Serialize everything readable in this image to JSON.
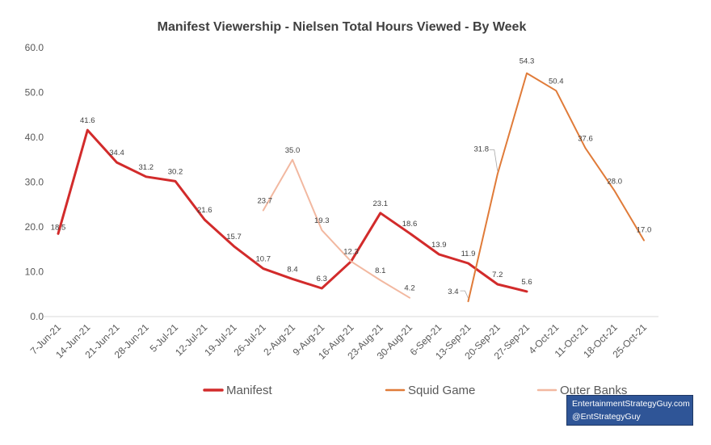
{
  "chart_data": {
    "type": "line",
    "title": "Manifest Viewership - Nielsen Total Hours Viewed - By Week",
    "xlabel": "",
    "ylabel": "",
    "ylim": [
      0,
      60
    ],
    "yticks": [
      "0.0",
      "10.0",
      "20.0",
      "30.0",
      "40.0",
      "50.0",
      "60.0"
    ],
    "grid": false,
    "legend_position": "bottom",
    "categories": [
      "7-Jun-21",
      "14-Jun-21",
      "21-Jun-21",
      "28-Jun-21",
      "5-Jul-21",
      "12-Jul-21",
      "19-Jul-21",
      "26-Jul-21",
      "2-Aug-21",
      "9-Aug-21",
      "16-Aug-21",
      "23-Aug-21",
      "30-Aug-21",
      "6-Sep-21",
      "13-Sep-21",
      "20-Sep-21",
      "27-Sep-21",
      "4-Oct-21",
      "11-Oct-21",
      "18-Oct-21",
      "25-Oct-21"
    ],
    "series": [
      {
        "name": "Manifest",
        "color": "#d22b2b",
        "values": [
          18.5,
          41.6,
          34.4,
          31.2,
          30.2,
          21.6,
          15.7,
          10.7,
          8.4,
          6.3,
          12.3,
          23.1,
          18.6,
          13.9,
          11.9,
          7.2,
          5.6,
          null,
          null,
          null,
          null
        ],
        "labels": [
          "18.5",
          "41.6",
          "34.4",
          "31.2",
          "30.2",
          "21.6",
          "15.7",
          "10.7",
          "8.4",
          "6.3",
          "12.3",
          "23.1",
          "18.6",
          "13.9",
          "11.9",
          "7.2",
          "5.6",
          null,
          null,
          null,
          null
        ]
      },
      {
        "name": "Squid Game",
        "color": "#e07b39",
        "values": [
          null,
          null,
          null,
          null,
          null,
          null,
          null,
          null,
          null,
          null,
          null,
          null,
          null,
          null,
          3.4,
          31.8,
          54.3,
          50.4,
          37.6,
          28.0,
          17.0
        ],
        "labels": [
          null,
          null,
          null,
          null,
          null,
          null,
          null,
          null,
          null,
          null,
          null,
          null,
          null,
          null,
          "3.4",
          "31.8",
          "54.3",
          "50.4",
          "37.6",
          "28.0",
          "17.0"
        ]
      },
      {
        "name": "Outer Banks",
        "color": "#f2b8a0",
        "values": [
          null,
          null,
          null,
          null,
          null,
          null,
          null,
          23.7,
          35.0,
          19.3,
          12.3,
          8.1,
          4.2,
          null,
          null,
          null,
          null,
          null,
          null,
          null,
          null
        ],
        "labels": [
          null,
          null,
          null,
          null,
          null,
          null,
          null,
          "23.7",
          "35.0",
          "19.3",
          null,
          "8.1",
          "4.2",
          null,
          null,
          null,
          null,
          null,
          null,
          null,
          null
        ]
      }
    ]
  },
  "credit": {
    "line1": "EntertainmentStrategyGuy.com",
    "line2": "@EntStrategyGuy",
    "background": "#2f5597"
  }
}
